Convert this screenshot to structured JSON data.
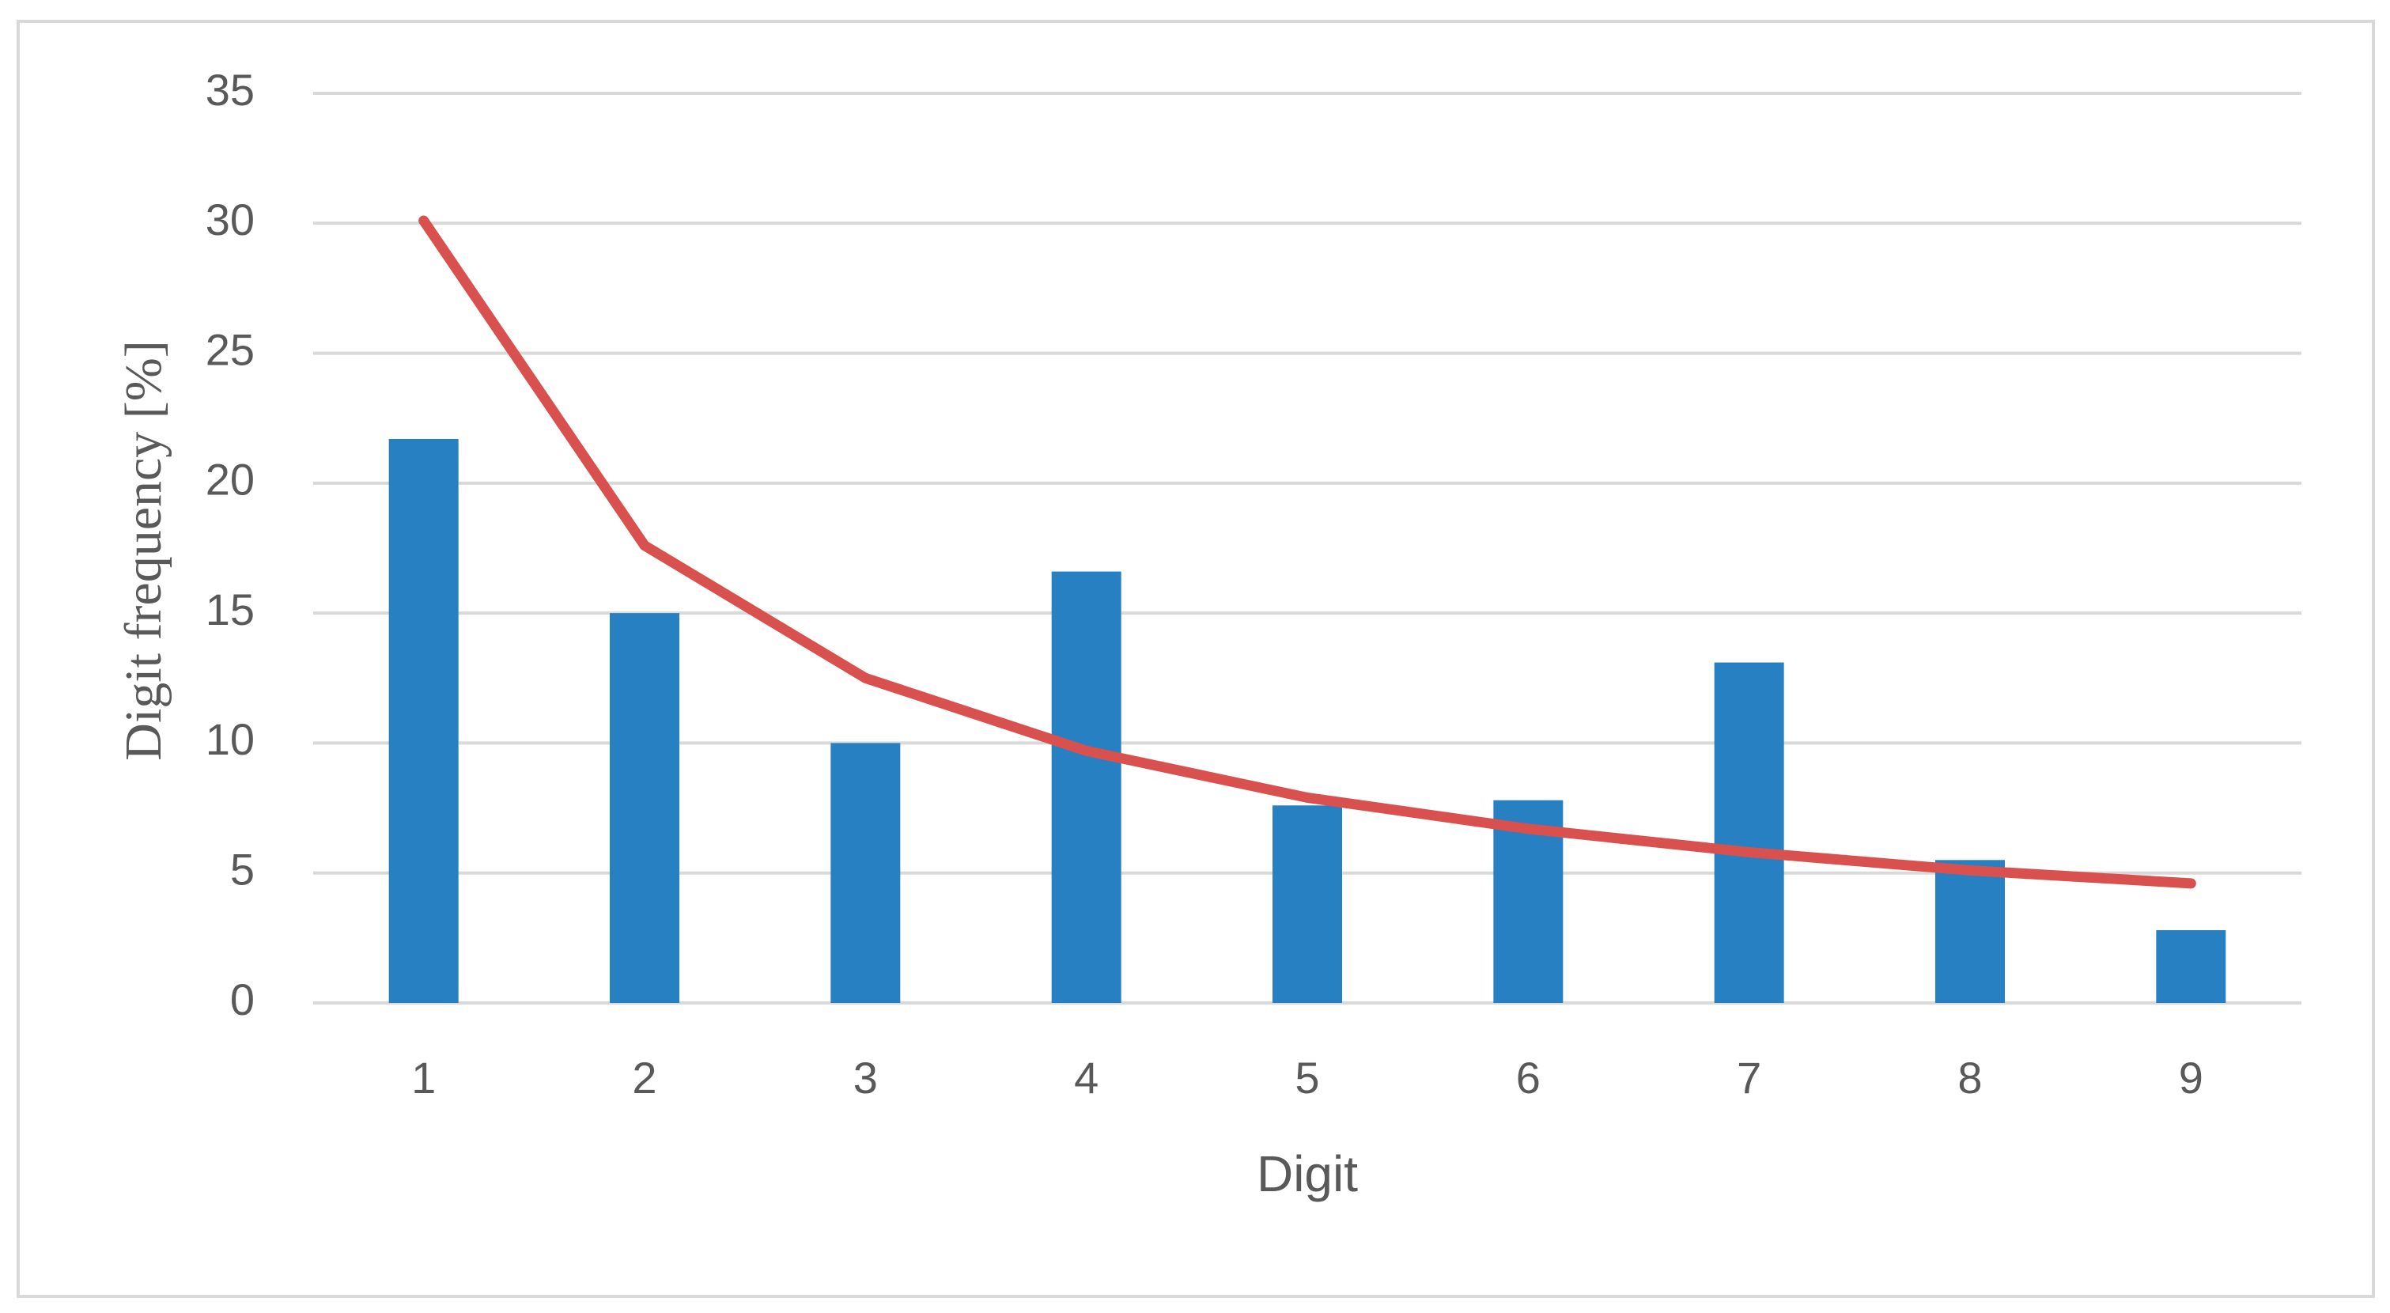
{
  "chart_data": {
    "type": "combo",
    "x_label": "Digit",
    "y_label": "Digit frequency [%]",
    "categories": [
      "1",
      "2",
      "3",
      "4",
      "5",
      "6",
      "7",
      "8",
      "9"
    ],
    "series": [
      {
        "type": "bar",
        "color": "#2680c2",
        "values": [
          21.7,
          15.0,
          10.0,
          16.6,
          7.6,
          7.8,
          13.1,
          5.5,
          2.8
        ]
      },
      {
        "type": "line",
        "color": "#d9514e",
        "values": [
          30.1,
          17.6,
          12.5,
          9.7,
          7.9,
          6.7,
          5.8,
          5.1,
          4.6
        ]
      }
    ],
    "ylim": [
      0,
      35
    ],
    "yticks": [
      0,
      5,
      10,
      15,
      20,
      25,
      30,
      35
    ],
    "grid": true
  }
}
